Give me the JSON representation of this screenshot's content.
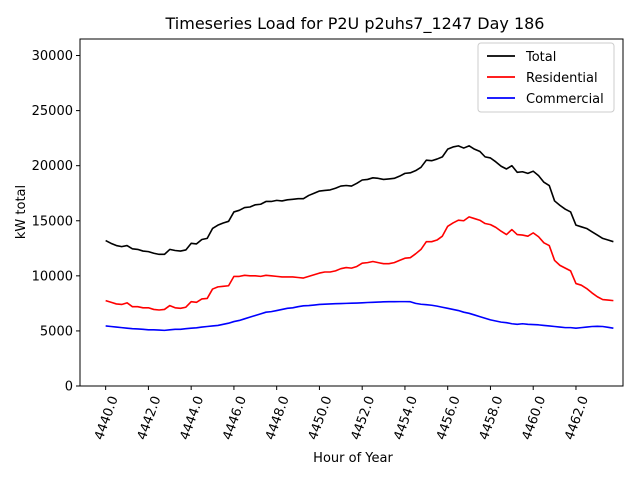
{
  "chart_data": {
    "type": "line",
    "title": "Timeseries Load for P2U p2uhs7_1247  Day 186",
    "xlabel": "Hour of Year",
    "ylabel": "kW total",
    "xlim": [
      4438.8,
      4464.2
    ],
    "ylim": [
      0,
      31500
    ],
    "xticks": [
      4440,
      4442,
      4444,
      4446,
      4448,
      4450,
      4452,
      4454,
      4456,
      4458,
      4460,
      4462
    ],
    "xtick_labels": [
      "4440.0",
      "4442.0",
      "4444.0",
      "4446.0",
      "4448.0",
      "4450.0",
      "4452.0",
      "4454.0",
      "4456.0",
      "4458.0",
      "4460.0",
      "4462.0"
    ],
    "yticks": [
      0,
      5000,
      10000,
      15000,
      20000,
      25000,
      30000
    ],
    "ytick_labels": [
      "0",
      "5000",
      "10000",
      "15000",
      "20000",
      "25000",
      "30000"
    ],
    "legend_position": "top-right",
    "x": [
      4440.0,
      4440.25,
      4440.5,
      4440.75,
      4441.0,
      4441.25,
      4441.5,
      4441.75,
      4442.0,
      4442.25,
      4442.5,
      4442.75,
      4443.0,
      4443.25,
      4443.5,
      4443.75,
      4444.0,
      4444.25,
      4444.5,
      4444.75,
      4445.0,
      4445.25,
      4445.5,
      4445.75,
      4446.0,
      4446.25,
      4446.5,
      4446.75,
      4447.0,
      4447.25,
      4447.5,
      4447.75,
      4448.0,
      4448.25,
      4448.5,
      4448.75,
      4449.0,
      4449.25,
      4449.5,
      4449.75,
      4450.0,
      4450.25,
      4450.5,
      4450.75,
      4451.0,
      4451.25,
      4451.5,
      4451.75,
      4452.0,
      4452.25,
      4452.5,
      4452.75,
      4453.0,
      4453.25,
      4453.5,
      4453.75,
      4454.0,
      4454.25,
      4454.5,
      4454.75,
      4455.0,
      4455.25,
      4455.5,
      4455.75,
      4456.0,
      4456.25,
      4456.5,
      4456.75,
      4457.0,
      4457.25,
      4457.5,
      4457.75,
      4458.0,
      4458.25,
      4458.5,
      4458.75,
      4459.0,
      4459.25,
      4459.5,
      4459.75,
      4460.0,
      4460.25,
      4460.5,
      4460.75,
      4461.0,
      4461.25,
      4461.5,
      4461.75,
      4462.0,
      4462.25,
      4462.5,
      4462.75,
      4463.0,
      4463.25,
      4463.5,
      4463.75
    ],
    "series": [
      {
        "name": "Total",
        "color": "#000000",
        "values": [
          13200,
          12950,
          12750,
          12650,
          12750,
          12450,
          12400,
          12250,
          12200,
          12050,
          11950,
          11950,
          12400,
          12300,
          12250,
          12350,
          12950,
          12900,
          13300,
          13400,
          14300,
          14600,
          14800,
          14950,
          15800,
          15950,
          16200,
          16250,
          16450,
          16500,
          16750,
          16750,
          16850,
          16800,
          16900,
          16950,
          17000,
          17000,
          17300,
          17500,
          17700,
          17750,
          17800,
          17950,
          18150,
          18200,
          18150,
          18400,
          18700,
          18750,
          18900,
          18850,
          18750,
          18800,
          18850,
          19050,
          19300,
          19350,
          19550,
          19850,
          20500,
          20450,
          20600,
          20800,
          21500,
          21700,
          21800,
          21600,
          21800,
          21500,
          21300,
          20800,
          20700,
          20350,
          19950,
          19700,
          20000,
          19400,
          19450,
          19300,
          19500,
          19100,
          18500,
          18200,
          16800,
          16400,
          16050,
          15800,
          14600,
          14450,
          14300,
          14000,
          13700,
          13400,
          13250,
          13100
        ]
      },
      {
        "name": "Residential",
        "color": "#ff0000",
        "values": [
          7750,
          7600,
          7450,
          7400,
          7550,
          7200,
          7200,
          7100,
          7100,
          6950,
          6900,
          6950,
          7300,
          7100,
          7050,
          7150,
          7650,
          7600,
          7900,
          7950,
          8800,
          9000,
          9050,
          9100,
          9950,
          9950,
          10050,
          10000,
          10000,
          9950,
          10050,
          10000,
          9950,
          9900,
          9900,
          9900,
          9850,
          9800,
          9950,
          10100,
          10250,
          10350,
          10350,
          10450,
          10650,
          10750,
          10700,
          10850,
          11150,
          11200,
          11300,
          11200,
          11100,
          11100,
          11200,
          11400,
          11600,
          11650,
          12000,
          12400,
          13100,
          13100,
          13250,
          13600,
          14500,
          14800,
          15050,
          15000,
          15350,
          15200,
          15050,
          14750,
          14650,
          14400,
          14050,
          13750,
          14200,
          13750,
          13700,
          13600,
          13900,
          13550,
          13000,
          12750,
          11400,
          10950,
          10700,
          10450,
          9300,
          9150,
          8850,
          8450,
          8100,
          7850,
          7800,
          7750
        ]
      },
      {
        "name": "Commercial",
        "color": "#0000ff",
        "values": [
          5450,
          5400,
          5350,
          5300,
          5250,
          5200,
          5180,
          5150,
          5100,
          5100,
          5080,
          5050,
          5100,
          5150,
          5150,
          5200,
          5250,
          5280,
          5350,
          5400,
          5450,
          5500,
          5600,
          5700,
          5850,
          5950,
          6100,
          6250,
          6400,
          6550,
          6700,
          6750,
          6850,
          6950,
          7050,
          7100,
          7200,
          7280,
          7300,
          7350,
          7400,
          7430,
          7450,
          7470,
          7480,
          7500,
          7520,
          7530,
          7550,
          7580,
          7600,
          7620,
          7640,
          7650,
          7650,
          7660,
          7660,
          7650,
          7500,
          7420,
          7380,
          7330,
          7250,
          7150,
          7050,
          6950,
          6850,
          6700,
          6600,
          6450,
          6300,
          6150,
          6000,
          5900,
          5800,
          5750,
          5650,
          5600,
          5650,
          5600,
          5580,
          5550,
          5500,
          5450,
          5400,
          5350,
          5300,
          5300,
          5250,
          5300,
          5350,
          5400,
          5420,
          5400,
          5330,
          5250
        ]
      }
    ]
  }
}
